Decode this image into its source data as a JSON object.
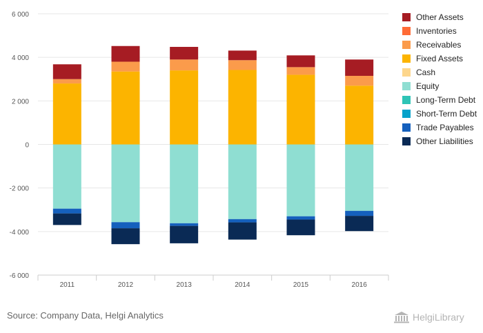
{
  "chart_data": {
    "type": "bar",
    "stacked": true,
    "categories": [
      "2011",
      "2012",
      "2013",
      "2014",
      "2015",
      "2016"
    ],
    "ylim": [
      -6000,
      6000
    ],
    "yticks": [
      6000,
      4000,
      2000,
      0,
      -2000,
      -4000,
      -6000
    ],
    "ytick_labels": [
      "6 000",
      "4 000",
      "2 000",
      "0",
      "-2 000",
      "-4 000",
      "-6 000"
    ],
    "grid": true,
    "legend_position": "right",
    "series": [
      {
        "name": "Cash",
        "color": "#fdd68c",
        "side": "asset",
        "values": [
          0,
          0,
          0,
          0,
          0,
          0
        ]
      },
      {
        "name": "Fixed Assets",
        "color": "#fcb400",
        "side": "asset",
        "values": [
          2800,
          3350,
          3400,
          3420,
          3200,
          2700
        ]
      },
      {
        "name": "Receivables",
        "color": "#fb9b4b",
        "side": "asset",
        "values": [
          200,
          450,
          500,
          450,
          350,
          450
        ]
      },
      {
        "name": "Inventories",
        "color": "#ff6b36",
        "side": "asset",
        "values": [
          0,
          0,
          0,
          0,
          0,
          0
        ]
      },
      {
        "name": "Other Assets",
        "color": "#a61c23",
        "side": "asset",
        "values": [
          680,
          720,
          580,
          440,
          540,
          750
        ]
      },
      {
        "name": "Equity",
        "color": "#8fded2",
        "side": "liability",
        "values": [
          -2950,
          -3570,
          -3620,
          -3430,
          -3300,
          -3050
        ]
      },
      {
        "name": "Long-Term Debt",
        "color": "#2ec4b6",
        "side": "liability",
        "values": [
          0,
          0,
          0,
          0,
          0,
          0
        ]
      },
      {
        "name": "Short-Term Debt",
        "color": "#06a2cb",
        "side": "liability",
        "values": [
          0,
          0,
          0,
          0,
          0,
          0
        ]
      },
      {
        "name": "Trade Payables",
        "color": "#1560bd",
        "side": "liability",
        "values": [
          -220,
          -280,
          -120,
          -150,
          -150,
          -230
        ]
      },
      {
        "name": "Other Liabilities",
        "color": "#0a2a55",
        "side": "liability",
        "values": [
          -530,
          -730,
          -800,
          -790,
          -720,
          -700
        ]
      }
    ]
  },
  "legend": [
    {
      "label": "Other Assets",
      "color": "#a61c23"
    },
    {
      "label": "Inventories",
      "color": "#ff6b36"
    },
    {
      "label": "Receivables",
      "color": "#fb9b4b"
    },
    {
      "label": "Fixed Assets",
      "color": "#fcb400"
    },
    {
      "label": "Cash",
      "color": "#fdd68c"
    },
    {
      "label": "Equity",
      "color": "#8fded2"
    },
    {
      "label": "Long-Term Debt",
      "color": "#2ec4b6"
    },
    {
      "label": "Short-Term Debt",
      "color": "#06a2cb"
    },
    {
      "label": "Trade Payables",
      "color": "#1560bd"
    },
    {
      "label": "Other Liabilities",
      "color": "#0a2a55"
    }
  ],
  "footer": {
    "source": "Source: Company Data, Helgi Analytics",
    "brand": "HelgiLibrary",
    "brand_icon": "library-building-icon"
  }
}
